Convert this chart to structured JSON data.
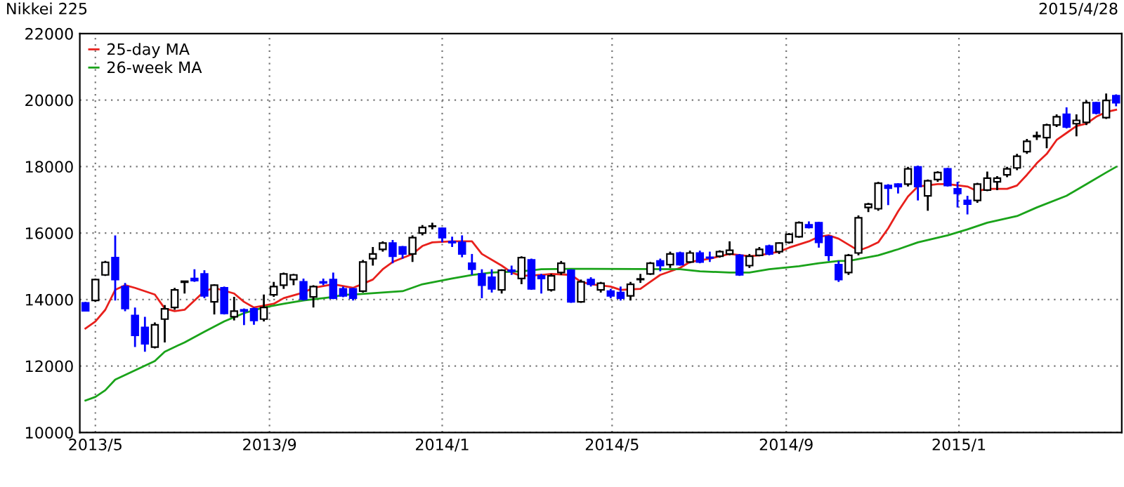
{
  "chart_data": {
    "type": "candlestick",
    "title": "Nikkei 225",
    "subtitle": "2015/4/28",
    "x": [
      "2013-04-24",
      "2013-05-01",
      "2013-05-08",
      "2013-05-15",
      "2013-05-22",
      "2013-05-29",
      "2013-06-05",
      "2013-06-12",
      "2013-06-19",
      "2013-06-26",
      "2013-07-03",
      "2013-07-10",
      "2013-07-17",
      "2013-07-24",
      "2013-07-31",
      "2013-08-07",
      "2013-08-14",
      "2013-08-21",
      "2013-08-28",
      "2013-09-04",
      "2013-09-11",
      "2013-09-18",
      "2013-09-25",
      "2013-10-02",
      "2013-10-09",
      "2013-10-16",
      "2013-10-23",
      "2013-10-30",
      "2013-11-06",
      "2013-11-13",
      "2013-11-20",
      "2013-11-27",
      "2013-12-04",
      "2013-12-11",
      "2013-12-18",
      "2013-12-25",
      "2014-01-01",
      "2014-01-08",
      "2014-01-15",
      "2014-01-22",
      "2014-01-29",
      "2014-02-05",
      "2014-02-12",
      "2014-02-19",
      "2014-02-26",
      "2014-03-05",
      "2014-03-12",
      "2014-03-19",
      "2014-03-26",
      "2014-04-02",
      "2014-04-09",
      "2014-04-16",
      "2014-04-23",
      "2014-04-30",
      "2014-05-07",
      "2014-05-14",
      "2014-05-21",
      "2014-05-28",
      "2014-06-04",
      "2014-06-11",
      "2014-06-18",
      "2014-06-25",
      "2014-07-02",
      "2014-07-09",
      "2014-07-16",
      "2014-07-23",
      "2014-07-30",
      "2014-08-06",
      "2014-08-13",
      "2014-08-20",
      "2014-08-27",
      "2014-09-03",
      "2014-09-10",
      "2014-09-17",
      "2014-09-24",
      "2014-10-01",
      "2014-10-08",
      "2014-10-15",
      "2014-10-22",
      "2014-10-29",
      "2014-11-05",
      "2014-11-12",
      "2014-11-19",
      "2014-11-26",
      "2014-12-03",
      "2014-12-10",
      "2014-12-17",
      "2014-12-24",
      "2014-12-31",
      "2015-01-07",
      "2015-01-14",
      "2015-01-21",
      "2015-01-28",
      "2015-02-04",
      "2015-02-11",
      "2015-02-18",
      "2015-02-25",
      "2015-03-04",
      "2015-03-11",
      "2015-03-18",
      "2015-03-25",
      "2015-04-01",
      "2015-04-08",
      "2015-04-15",
      "2015-04-22"
    ],
    "ohlc": [
      [
        13900,
        13930,
        13650,
        13660
      ],
      [
        13970,
        14630,
        13930,
        14600
      ],
      [
        14740,
        15160,
        14710,
        15120
      ],
      [
        15260,
        15930,
        13970,
        14600
      ],
      [
        14390,
        14500,
        13650,
        13730
      ],
      [
        13520,
        13760,
        12570,
        12920
      ],
      [
        13160,
        13480,
        12430,
        12670
      ],
      [
        12570,
        13310,
        12530,
        13240
      ],
      [
        13410,
        13830,
        12710,
        13720
      ],
      [
        13760,
        14350,
        13690,
        14290
      ],
      [
        14520,
        14560,
        14180,
        14550
      ],
      [
        14630,
        14910,
        14530,
        14570
      ],
      [
        14770,
        14880,
        14040,
        14110
      ],
      [
        13930,
        14460,
        13550,
        14430
      ],
      [
        14350,
        14390,
        13550,
        13580
      ],
      [
        13480,
        14080,
        13370,
        13650
      ],
      [
        13690,
        13730,
        13230,
        13650
      ],
      [
        13720,
        13760,
        13240,
        13370
      ],
      [
        13410,
        14150,
        13340,
        13760
      ],
      [
        14140,
        14530,
        14080,
        14390
      ],
      [
        14430,
        14810,
        14320,
        14770
      ],
      [
        14600,
        14770,
        14430,
        14740
      ],
      [
        14530,
        14630,
        13970,
        14010
      ],
      [
        14080,
        14430,
        13760,
        14390
      ],
      [
        14530,
        14630,
        14430,
        14500
      ],
      [
        14600,
        14810,
        14010,
        14040
      ],
      [
        14320,
        14390,
        14070,
        14110
      ],
      [
        14320,
        14350,
        13970,
        14040
      ],
      [
        14250,
        15190,
        14210,
        15130
      ],
      [
        15230,
        15580,
        15020,
        15370
      ],
      [
        15510,
        15750,
        15440,
        15700
      ],
      [
        15700,
        15790,
        15090,
        15300
      ],
      [
        15580,
        15610,
        15230,
        15370
      ],
      [
        15370,
        15930,
        15130,
        15860
      ],
      [
        16000,
        16240,
        15930,
        16170
      ],
      [
        16200,
        16310,
        16110,
        16210
      ],
      [
        16140,
        16170,
        15720,
        15860
      ],
      [
        15740,
        15890,
        15580,
        15710
      ],
      [
        15720,
        15930,
        15270,
        15370
      ],
      [
        15090,
        15370,
        14740,
        14910
      ],
      [
        14770,
        14910,
        14040,
        14430
      ],
      [
        14670,
        14910,
        14210,
        14320
      ],
      [
        14290,
        14910,
        14180,
        14880
      ],
      [
        14880,
        15020,
        14740,
        14850
      ],
      [
        14630,
        15300,
        14460,
        15260
      ],
      [
        15190,
        15230,
        14290,
        14320
      ],
      [
        14710,
        14770,
        14180,
        14630
      ],
      [
        14290,
        14770,
        14240,
        14710
      ],
      [
        14810,
        15160,
        14740,
        15090
      ],
      [
        14880,
        14910,
        13900,
        13930
      ],
      [
        13930,
        14600,
        13900,
        14530
      ],
      [
        14600,
        14670,
        14390,
        14460
      ],
      [
        14290,
        14530,
        14210,
        14490
      ],
      [
        14250,
        14320,
        14040,
        14110
      ],
      [
        14210,
        14390,
        13970,
        14040
      ],
      [
        14110,
        14530,
        13970,
        14460
      ],
      [
        14600,
        14770,
        14500,
        14620
      ],
      [
        14770,
        15130,
        14740,
        15090
      ],
      [
        15160,
        15230,
        14850,
        15020
      ],
      [
        15050,
        15440,
        14950,
        15370
      ],
      [
        15400,
        15440,
        15020,
        15050
      ],
      [
        15130,
        15470,
        15090,
        15400
      ],
      [
        15400,
        15470,
        15090,
        15130
      ],
      [
        15270,
        15440,
        15130,
        15250
      ],
      [
        15300,
        15480,
        15260,
        15440
      ],
      [
        15370,
        15750,
        15330,
        15480
      ],
      [
        15330,
        15370,
        14710,
        14740
      ],
      [
        15020,
        15370,
        14950,
        15300
      ],
      [
        15330,
        15580,
        15300,
        15510
      ],
      [
        15610,
        15650,
        15330,
        15370
      ],
      [
        15440,
        15720,
        15370,
        15700
      ],
      [
        15720,
        16000,
        15680,
        15960
      ],
      [
        15890,
        16350,
        15860,
        16310
      ],
      [
        16250,
        16350,
        16140,
        16170
      ],
      [
        16310,
        16340,
        15560,
        15720
      ],
      [
        15890,
        15930,
        15160,
        15330
      ],
      [
        15050,
        15160,
        14530,
        14600
      ],
      [
        14810,
        15370,
        14740,
        15330
      ],
      [
        15400,
        16530,
        15330,
        16460
      ],
      [
        16770,
        16910,
        16630,
        16870
      ],
      [
        16730,
        17540,
        16670,
        17500
      ],
      [
        17430,
        17470,
        16840,
        17350
      ],
      [
        17470,
        17500,
        17190,
        17400
      ],
      [
        17470,
        17990,
        17400,
        17930
      ],
      [
        17990,
        18030,
        16980,
        17400
      ],
      [
        17120,
        17610,
        16670,
        17570
      ],
      [
        17610,
        17860,
        17540,
        17820
      ],
      [
        17930,
        17960,
        17400,
        17430
      ],
      [
        17330,
        17540,
        16770,
        17190
      ],
      [
        16980,
        17120,
        16560,
        16870
      ],
      [
        16980,
        17510,
        16910,
        17470
      ],
      [
        17290,
        17850,
        17260,
        17650
      ],
      [
        17540,
        17710,
        17290,
        17650
      ],
      [
        17750,
        17990,
        17680,
        17930
      ],
      [
        17960,
        18380,
        17890,
        18310
      ],
      [
        18450,
        18830,
        18380,
        18760
      ],
      [
        18900,
        19050,
        18800,
        18930
      ],
      [
        18870,
        19290,
        18550,
        19250
      ],
      [
        19250,
        19570,
        19190,
        19500
      ],
      [
        19570,
        19780,
        19150,
        19190
      ],
      [
        19290,
        19570,
        18910,
        19390
      ],
      [
        19330,
        19990,
        19250,
        19920
      ],
      [
        19920,
        19950,
        19570,
        19610
      ],
      [
        19470,
        20200,
        19430,
        19990
      ],
      [
        20130,
        20170,
        19810,
        19920
      ]
    ],
    "colors": [
      "#0000ff",
      "#ffffff",
      "#ffffff",
      "#0000ff",
      "#0000ff",
      "#0000ff",
      "#0000ff",
      "#ffffff",
      "#ffffff",
      "#ffffff",
      "#ffffff",
      "#0000ff",
      "#0000ff",
      "#ffffff",
      "#0000ff",
      "#ffffff",
      "#0000ff",
      "#0000ff",
      "#ffffff",
      "#ffffff",
      "#ffffff",
      "#ffffff",
      "#0000ff",
      "#ffffff",
      "#0000ff",
      "#0000ff",
      "#0000ff",
      "#0000ff",
      "#ffffff",
      "#ffffff",
      "#ffffff",
      "#0000ff",
      "#0000ff",
      "#ffffff",
      "#ffffff",
      "#ffffff",
      "#0000ff",
      "#0000ff",
      "#0000ff",
      "#0000ff",
      "#0000ff",
      "#0000ff",
      "#ffffff",
      "#0000ff",
      "#ffffff",
      "#0000ff",
      "#0000ff",
      "#ffffff",
      "#ffffff",
      "#0000ff",
      "#ffffff",
      "#0000ff",
      "#ffffff",
      "#0000ff",
      "#0000ff",
      "#ffffff",
      "#ffffff",
      "#ffffff",
      "#0000ff",
      "#ffffff",
      "#0000ff",
      "#ffffff",
      "#0000ff",
      "#0000ff",
      "#ffffff",
      "#ffffff",
      "#0000ff",
      "#ffffff",
      "#ffffff",
      "#0000ff",
      "#ffffff",
      "#ffffff",
      "#ffffff",
      "#0000ff",
      "#0000ff",
      "#0000ff",
      "#0000ff",
      "#ffffff",
      "#ffffff",
      "#ffffff",
      "#ffffff",
      "#0000ff",
      "#0000ff",
      "#ffffff",
      "#0000ff",
      "#ffffff",
      "#ffffff",
      "#0000ff",
      "#0000ff",
      "#0000ff",
      "#ffffff",
      "#ffffff",
      "#ffffff",
      "#ffffff",
      "#ffffff",
      "#ffffff",
      "#ffffff",
      "#ffffff",
      "#ffffff",
      "#0000ff",
      "#ffffff",
      "#ffffff",
      "#0000ff",
      "#ffffff",
      "#0000ff"
    ],
    "series": [
      {
        "name": "25-day MA",
        "type": "line",
        "color": "#e8201c",
        "x": [
          "2013-04-24",
          "2013-05-01",
          "2013-05-08",
          "2013-05-15",
          "2013-05-22",
          "2013-05-29",
          "2013-06-12",
          "2013-06-19",
          "2013-06-26",
          "2013-07-03",
          "2013-07-10",
          "2013-07-17",
          "2013-07-24",
          "2013-08-07",
          "2013-08-14",
          "2013-08-21",
          "2013-09-04",
          "2013-09-11",
          "2013-09-25",
          "2013-10-02",
          "2013-10-16",
          "2013-10-30",
          "2013-11-13",
          "2013-11-20",
          "2013-11-27",
          "2013-12-11",
          "2013-12-18",
          "2013-12-25",
          "2014-01-08",
          "2014-01-22",
          "2014-01-29",
          "2014-02-12",
          "2014-02-19",
          "2014-02-26",
          "2014-03-12",
          "2014-03-19",
          "2014-04-02",
          "2014-04-09",
          "2014-04-16",
          "2014-04-30",
          "2014-05-07",
          "2014-05-21",
          "2014-05-28",
          "2014-06-04",
          "2014-06-18",
          "2014-06-25",
          "2014-07-09",
          "2014-07-16",
          "2014-07-23",
          "2014-08-06",
          "2014-08-13",
          "2014-08-27",
          "2014-09-03",
          "2014-09-17",
          "2014-09-24",
          "2014-10-01",
          "2014-10-08",
          "2014-10-15",
          "2014-10-22",
          "2014-10-29",
          "2014-11-05",
          "2014-11-12",
          "2014-11-19",
          "2014-11-26",
          "2014-12-03",
          "2014-12-17",
          "2014-12-24",
          "2015-01-07",
          "2015-01-14",
          "2015-01-21",
          "2015-02-04",
          "2015-02-11",
          "2015-02-18",
          "2015-02-25",
          "2015-03-04",
          "2015-03-11",
          "2015-03-18",
          "2015-03-25",
          "2015-04-01",
          "2015-04-08",
          "2015-04-15",
          "2015-04-22"
        ],
        "values": [
          13130,
          13340,
          13690,
          14290,
          14430,
          14350,
          14150,
          13730,
          13650,
          13690,
          13970,
          14250,
          14350,
          14180,
          13930,
          13760,
          13870,
          14040,
          14210,
          14350,
          14460,
          14350,
          14600,
          14910,
          15130,
          15370,
          15610,
          15720,
          15750,
          15750,
          15370,
          15020,
          14810,
          14710,
          14740,
          14770,
          14740,
          14530,
          14460,
          14390,
          14290,
          14320,
          14530,
          14740,
          14950,
          15130,
          15230,
          15300,
          15370,
          15300,
          15330,
          15440,
          15560,
          15750,
          15890,
          15930,
          15830,
          15650,
          15470,
          15580,
          15720,
          16140,
          16650,
          17100,
          17400,
          17470,
          17470,
          17400,
          17260,
          17330,
          17330,
          17430,
          17750,
          18100,
          18380,
          18800,
          19010,
          19220,
          19290,
          19500,
          19640,
          19710
        ]
      },
      {
        "name": "26-week MA",
        "type": "line",
        "color": "#1aa31a",
        "x": [
          "2013-04-24",
          "2013-05-01",
          "2013-05-08",
          "2013-05-15",
          "2013-05-29",
          "2013-06-12",
          "2013-06-19",
          "2013-07-03",
          "2013-07-17",
          "2013-07-31",
          "2013-08-14",
          "2013-08-28",
          "2013-09-11",
          "2013-09-25",
          "2013-10-09",
          "2013-10-16",
          "2013-10-23",
          "2013-10-30",
          "2013-12-04",
          "2013-12-18",
          "2014-01-08",
          "2014-01-22",
          "2014-02-05",
          "2014-02-26",
          "2014-03-12",
          "2014-04-02",
          "2014-04-16",
          "2014-06-18",
          "2014-07-02",
          "2014-07-23",
          "2014-08-06",
          "2014-08-20",
          "2014-09-10",
          "2014-09-24",
          "2014-10-08",
          "2014-10-15",
          "2014-11-05",
          "2014-11-19",
          "2014-12-03",
          "2014-12-24",
          "2015-01-07",
          "2015-01-21",
          "2015-02-11",
          "2015-02-25",
          "2015-03-18",
          "2015-04-01",
          "2015-04-15",
          "2015-04-22"
        ],
        "values": [
          10960,
          11070,
          11270,
          11590,
          11870,
          12150,
          12430,
          12710,
          13030,
          13340,
          13590,
          13760,
          13870,
          13970,
          14040,
          14080,
          14140,
          14150,
          14250,
          14460,
          14630,
          14740,
          14810,
          14850,
          14910,
          14920,
          14920,
          14910,
          14850,
          14810,
          14810,
          14910,
          15000,
          15090,
          15160,
          15160,
          15330,
          15510,
          15720,
          15930,
          16110,
          16310,
          16510,
          16770,
          17120,
          17470,
          17820,
          17990
        ]
      }
    ],
    "xlim": [
      "2013-04-20",
      "2015-04-26"
    ],
    "xticks": [
      {
        "value": "2013-05-01",
        "label": "2013/5"
      },
      {
        "value": "2013-09-01",
        "label": "2013/9"
      },
      {
        "value": "2014-01-01",
        "label": "2014/1"
      },
      {
        "value": "2014-05-01",
        "label": "2014/5"
      },
      {
        "value": "2014-09-01",
        "label": "2014/9"
      },
      {
        "value": "2015-01-01",
        "label": "2015/1"
      }
    ],
    "ylim": [
      10000,
      22000
    ],
    "yticks": [
      10000,
      12000,
      14000,
      16000,
      18000,
      20000,
      22000
    ],
    "grid": true,
    "legend": "top left"
  }
}
